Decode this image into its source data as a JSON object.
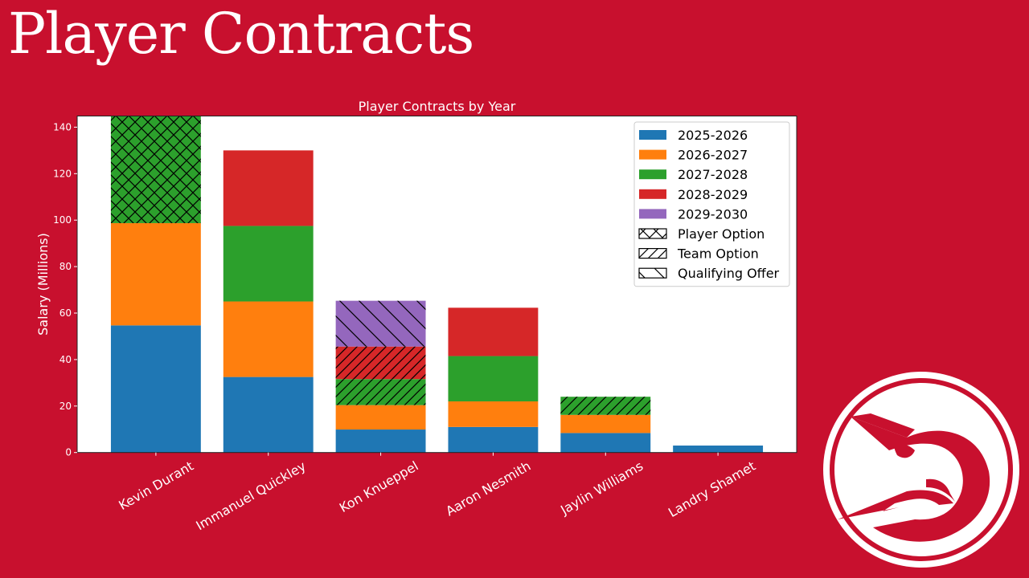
{
  "page": {
    "title": "Player Contracts",
    "background_color": "#C8102E",
    "logo": "atlanta-hawks-logo"
  },
  "chart_data": {
    "type": "bar",
    "stacked": true,
    "title": "Player Contracts by Year",
    "xlabel": "",
    "ylabel": "Salary (Millions)",
    "ylim": [
      0,
      144.8
    ],
    "yticks": [
      0,
      20,
      40,
      60,
      80,
      100,
      120,
      140
    ],
    "grid": false,
    "legend_position": "top-right",
    "categories": [
      "Kevin Durant",
      "Immanuel Quickley",
      "Kon Knueppel",
      "Aaron Nesmith",
      "Jaylin Williams",
      "Landry Shamet"
    ],
    "series": [
      {
        "name": "2025-2026",
        "color": "#1f77b4",
        "values": [
          54.7,
          32.5,
          9.9,
          11.0,
          8.4,
          3.0
        ]
      },
      {
        "name": "2026-2027",
        "color": "#ff7f0e",
        "values": [
          44.0,
          32.5,
          10.5,
          11.0,
          7.8,
          0
        ]
      },
      {
        "name": "2027-2028",
        "color": "#2ca02c",
        "values": [
          46.0,
          32.5,
          11.2,
          19.5,
          7.8,
          0
        ]
      },
      {
        "name": "2028-2029",
        "color": "#d62728",
        "values": [
          0,
          32.5,
          14.0,
          20.8,
          0,
          0
        ]
      },
      {
        "name": "2029-2030",
        "color": "#9467bd",
        "values": [
          0,
          0,
          19.7,
          0,
          0,
          0
        ]
      }
    ],
    "hatches": {
      "Kevin Durant": {
        "2027-2028": "Player Option"
      },
      "Kon Knueppel": {
        "2027-2028": "Team Option",
        "2028-2029": "Team Option",
        "2029-2030": "Qualifying Offer"
      },
      "Jaylin Williams": {
        "2027-2028": "Team Option"
      }
    },
    "option_legend": [
      {
        "name": "Player Option",
        "hatch": "cross"
      },
      {
        "name": "Team Option",
        "hatch": "forward"
      },
      {
        "name": "Qualifying Offer",
        "hatch": "back"
      }
    ]
  }
}
